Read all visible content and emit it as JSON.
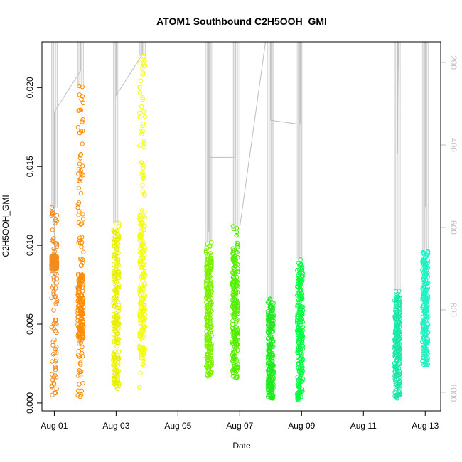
{
  "chart_data": {
    "type": "scatter",
    "title": "ATOM1 Southbound C2H5OOH_GMI",
    "xlabel": "Date",
    "ylabel": "C2H5OOH_GMI",
    "x_ticks": [
      "Aug 01",
      "Aug 03",
      "Aug 05",
      "Aug 07",
      "Aug 09",
      "Aug 11",
      "Aug 13"
    ],
    "x_tick_days": [
      1,
      3,
      5,
      7,
      9,
      11,
      13
    ],
    "xlim_days": [
      0.6,
      13.5
    ],
    "y_ticks": [
      "0.000",
      "0.005",
      "0.010",
      "0.015",
      "0.020"
    ],
    "y_tick_values": [
      0.0,
      0.005,
      0.01,
      0.015,
      0.02
    ],
    "ylim": [
      -0.0005,
      0.0229
    ],
    "y2_ticks": [
      "200",
      "400",
      "600",
      "800",
      "1000"
    ],
    "y2_tick_values": [
      200,
      400,
      600,
      800,
      1000
    ],
    "y2lim": [
      1045,
      150
    ],
    "grid": false,
    "series": [
      {
        "day": 1.0,
        "ymin": 0.0005,
        "ymax": 0.0124,
        "dense_min": 0.0085,
        "dense_max": 0.0093,
        "color": "#f28c1e"
      },
      {
        "day": 1.85,
        "ymin": 0.0004,
        "ymax": 0.0201,
        "dense_min": 0.004,
        "dense_max": 0.0082,
        "color": "#ff8c00"
      },
      {
        "day": 3.0,
        "ymin": 0.0009,
        "ymax": 0.0114,
        "dense_min": 0.001,
        "dense_max": 0.011,
        "color": "#e8f000"
      },
      {
        "day": 3.85,
        "ymin": 0.001,
        "ymax": 0.022,
        "dense_min": 0.003,
        "dense_max": 0.012,
        "color": "#f4ff00"
      },
      {
        "day": 6.0,
        "ymin": 0.0017,
        "ymax": 0.0102,
        "dense_min": 0.0017,
        "dense_max": 0.01,
        "color": "#7cf000"
      },
      {
        "day": 6.85,
        "ymin": 0.0016,
        "ymax": 0.0112,
        "dense_min": 0.002,
        "dense_max": 0.01,
        "color": "#55ee00"
      },
      {
        "day": 8.0,
        "ymin": 0.0003,
        "ymax": 0.0066,
        "dense_min": 0.0003,
        "dense_max": 0.0062,
        "color": "#20ea20"
      },
      {
        "day": 8.95,
        "ymin": 0.0002,
        "ymax": 0.0091,
        "dense_min": 0.0003,
        "dense_max": 0.0088,
        "color": "#00ff40"
      },
      {
        "day": 12.1,
        "ymin": 0.0003,
        "ymax": 0.0071,
        "dense_min": 0.0003,
        "dense_max": 0.0062,
        "color": "#1ae8a8"
      },
      {
        "day": 13.0,
        "ymin": 0.0024,
        "ymax": 0.0096,
        "dense_min": 0.0024,
        "dense_max": 0.0096,
        "color": "#1ff2c0"
      }
    ],
    "pressure_track": [
      [
        1.0,
        775
      ],
      [
        1.0,
        320
      ],
      [
        1.85,
        220
      ],
      [
        1.85,
        95
      ],
      [
        1.9,
        60
      ],
      [
        3.0,
        60
      ],
      [
        3.0,
        280
      ],
      [
        3.85,
        180
      ],
      [
        3.85,
        85
      ],
      [
        4.3,
        60
      ],
      [
        6.0,
        60
      ],
      [
        6.0,
        610
      ],
      [
        6.0,
        430
      ],
      [
        6.85,
        430
      ],
      [
        6.85,
        60
      ],
      [
        7.0,
        60
      ],
      [
        7.0,
        600
      ],
      [
        8.0,
        60
      ],
      [
        8.0,
        340
      ],
      [
        8.95,
        350
      ],
      [
        8.95,
        60
      ],
      [
        12.1,
        60
      ],
      [
        12.1,
        420
      ],
      [
        12.15,
        60
      ],
      [
        13.0,
        60
      ],
      [
        13.0,
        550
      ]
    ]
  }
}
